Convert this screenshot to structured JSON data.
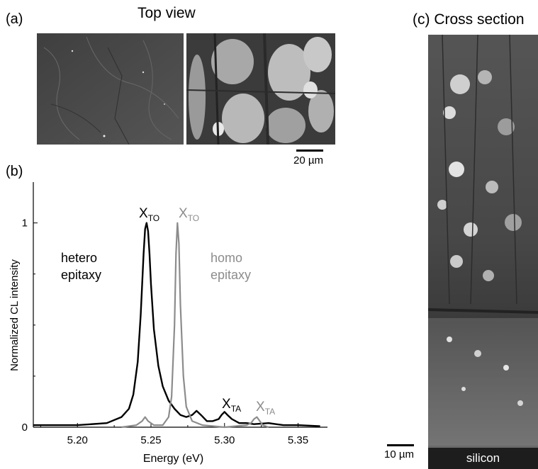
{
  "panel_a": {
    "label": "(a)",
    "title": "Top view",
    "scale_label": "20 µm"
  },
  "panel_c": {
    "label": "(c) Cross section",
    "scale_label": "10 µm",
    "substrate_label": "silicon"
  },
  "chart_data": {
    "type": "line",
    "panel_label": "(b)",
    "title": "",
    "xlabel": "Energy (eV)",
    "ylabel": "Normalized CL intensity",
    "xlim": [
      5.17,
      5.37
    ],
    "ylim": [
      0,
      1.2
    ],
    "x_ticks": [
      "5.20",
      "5.25",
      "5.30",
      "5.35"
    ],
    "y_ticks": [
      "0",
      "1"
    ],
    "grid": false,
    "colors": {
      "hetero": "#000000",
      "homo": "#8c8c8c"
    },
    "series": [
      {
        "key": "hetero",
        "x": [
          5.17,
          5.2,
          5.22,
          5.23,
          5.235,
          5.238,
          5.241,
          5.243,
          5.245,
          5.246,
          5.247,
          5.248,
          5.249,
          5.25,
          5.252,
          5.255,
          5.258,
          5.262,
          5.266,
          5.27,
          5.274,
          5.278,
          5.281,
          5.284,
          5.288,
          5.292,
          5.296,
          5.298,
          5.3,
          5.302,
          5.305,
          5.31,
          5.315,
          5.32,
          5.33,
          5.335,
          5.34,
          5.35,
          5.365
        ],
        "y": [
          0.01,
          0.01,
          0.02,
          0.05,
          0.09,
          0.16,
          0.32,
          0.55,
          0.85,
          0.97,
          1.0,
          0.96,
          0.85,
          0.7,
          0.48,
          0.3,
          0.2,
          0.13,
          0.09,
          0.06,
          0.05,
          0.06,
          0.08,
          0.06,
          0.03,
          0.03,
          0.04,
          0.06,
          0.075,
          0.06,
          0.04,
          0.02,
          0.02,
          0.015,
          0.02,
          0.015,
          0.01,
          0.01,
          0.005
        ]
      },
      {
        "key": "homo",
        "x": [
          5.23,
          5.24,
          5.244,
          5.246,
          5.248,
          5.252,
          5.258,
          5.262,
          5.264,
          5.266,
          5.267,
          5.268,
          5.269,
          5.27,
          5.272,
          5.274,
          5.278,
          5.285,
          5.3,
          5.315,
          5.318,
          5.32,
          5.322,
          5.324,
          5.326,
          5.33
        ],
        "y": [
          0.0,
          0.01,
          0.03,
          0.05,
          0.03,
          0.01,
          0.01,
          0.05,
          0.15,
          0.5,
          0.85,
          1.0,
          0.9,
          0.6,
          0.25,
          0.1,
          0.03,
          0.01,
          0.0,
          0.01,
          0.02,
          0.04,
          0.05,
          0.03,
          0.01,
          0.0
        ]
      }
    ],
    "annotations": [
      {
        "key": "hetero-label",
        "text": "hetero\nepitaxy",
        "color": "#000000"
      },
      {
        "key": "homo-label",
        "text": "homo\nepitaxy",
        "color": "#8c8c8c"
      },
      {
        "key": "hetero-xto",
        "text": "X",
        "sub": "TO",
        "color": "#000000"
      },
      {
        "key": "homo-xto",
        "text": "X",
        "sub": "TO",
        "color": "#8c8c8c"
      },
      {
        "key": "hetero-xta",
        "text": "X",
        "sub": "TA",
        "color": "#000000"
      },
      {
        "key": "homo-xta",
        "text": "X",
        "sub": "TA",
        "color": "#8c8c8c"
      }
    ]
  }
}
